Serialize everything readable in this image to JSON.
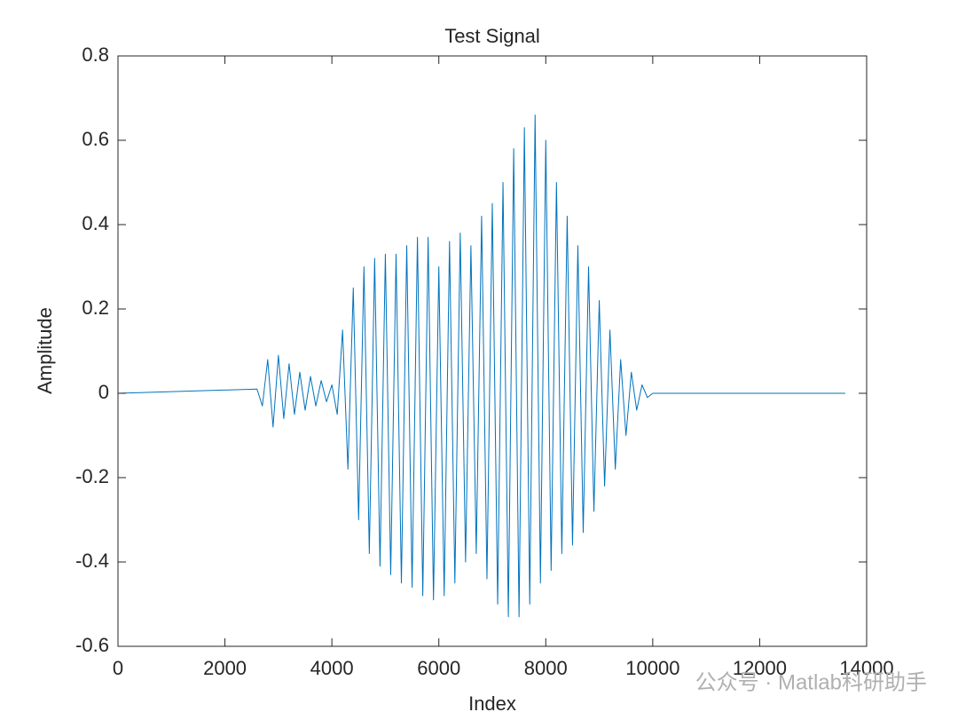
{
  "chart_data": {
    "type": "line",
    "title": "Test Signal",
    "x_label": "Index",
    "y_label": "Amplitude",
    "x": [
      0,
      2600,
      2700,
      2800,
      2900,
      3000,
      3100,
      3200,
      3300,
      3400,
      3500,
      3600,
      3700,
      3800,
      3900,
      4000,
      4100,
      4200,
      4300,
      4400,
      4500,
      4600,
      4700,
      4800,
      4900,
      5000,
      5100,
      5200,
      5300,
      5400,
      5500,
      5600,
      5700,
      5800,
      5900,
      6000,
      6100,
      6200,
      6300,
      6400,
      6500,
      6600,
      6700,
      6800,
      6900,
      7000,
      7100,
      7200,
      7300,
      7400,
      7500,
      7600,
      7700,
      7800,
      7900,
      8000,
      8100,
      8200,
      8300,
      8400,
      8500,
      8600,
      8700,
      8800,
      8900,
      9000,
      9100,
      9200,
      9300,
      9400,
      9500,
      9600,
      9700,
      9800,
      9900,
      10000,
      13600
    ],
    "series": [
      {
        "color": "#0072BD",
        "values": [
          0,
          0.01,
          -0.03,
          0.08,
          -0.08,
          0.09,
          -0.06,
          0.07,
          -0.05,
          0.05,
          -0.04,
          0.04,
          -0.03,
          0.03,
          -0.02,
          0.02,
          -0.05,
          0.15,
          -0.18,
          0.25,
          -0.3,
          0.3,
          -0.38,
          0.32,
          -0.41,
          0.33,
          -0.43,
          0.33,
          -0.45,
          0.35,
          -0.46,
          0.37,
          -0.48,
          0.37,
          -0.49,
          0.3,
          -0.48,
          0.36,
          -0.45,
          0.38,
          -0.4,
          0.35,
          -0.38,
          0.42,
          -0.44,
          0.45,
          -0.5,
          0.5,
          -0.53,
          0.58,
          -0.53,
          0.63,
          -0.5,
          0.66,
          -0.45,
          0.6,
          -0.42,
          0.5,
          -0.38,
          0.42,
          -0.36,
          0.35,
          -0.33,
          0.3,
          -0.28,
          0.22,
          -0.22,
          0.15,
          -0.18,
          0.08,
          -0.1,
          0.05,
          -0.04,
          0.02,
          -0.01,
          0,
          0
        ]
      }
    ],
    "xlim": [
      0,
      14000
    ],
    "xticks": [
      0,
      2000,
      4000,
      6000,
      8000,
      10000,
      12000,
      14000
    ],
    "ylim": [
      -0.6,
      0.8
    ],
    "yticks": [
      -0.6,
      -0.4,
      -0.2,
      0,
      0.2,
      0.4,
      0.6,
      0.8
    ],
    "grid": false,
    "box": true,
    "watermark": "公众号 · Matlab科研助手"
  }
}
